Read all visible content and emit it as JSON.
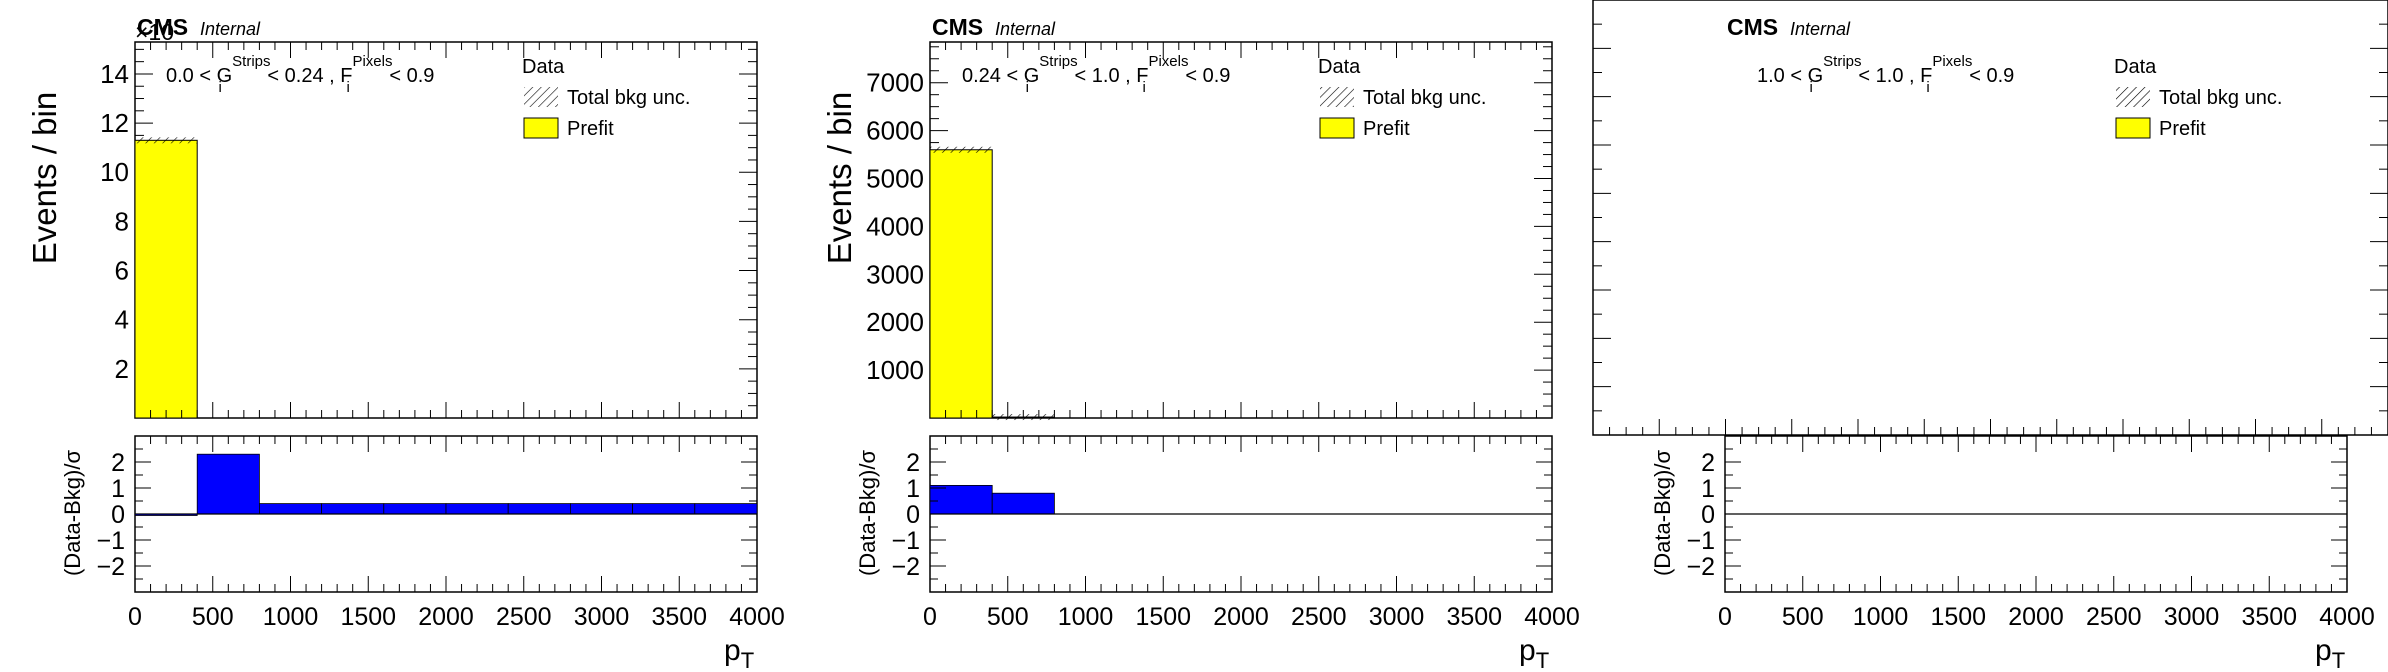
{
  "panels": [
    {
      "cms_label": "CMS",
      "internal_label": "Internal",
      "exponent_label": "×10",
      "selection_text": {
        "low": "0.0 < G",
        "g_sup": "Strips",
        "g_sub": "i",
        "high": " < 0.24 , F",
        "f_sup": "Pixels",
        "f_sub": "i",
        "end": " < 0.9"
      },
      "legend": [
        "Data",
        "Total bkg unc.",
        "Prefit"
      ],
      "ylabel": "Events / bin",
      "ratio_ylabel": "(Data-Bkg)/σ",
      "xlabel_main": "p",
      "xlabel_sub": "T"
    },
    {
      "cms_label": "CMS",
      "internal_label": "Internal",
      "selection_text": {
        "low": "0.24 < G",
        "g_sup": "Strips",
        "g_sub": "i",
        "high": " < 1.0 , F",
        "f_sup": "Pixels",
        "f_sub": "i",
        "end": " < 0.9"
      },
      "legend": [
        "Data",
        "Total bkg unc.",
        "Prefit"
      ],
      "ylabel": "Events / bin",
      "ratio_ylabel": "(Data-Bkg)/σ",
      "xlabel_main": "p",
      "xlabel_sub": "T"
    },
    {
      "cms_label": "CMS",
      "internal_label": "Internal",
      "selection_text": {
        "low": "1.0 < G",
        "g_sup": "Strips",
        "g_sub": "i",
        "high": " < 1.0 , F",
        "f_sup": "Pixels",
        "f_sub": "i",
        "end": " < 0.9"
      },
      "legend": [
        "Data",
        "Total bkg unc.",
        "Prefit"
      ],
      "ylabel": "",
      "ratio_ylabel": "(Data-Bkg)/σ",
      "xlabel_main": "p",
      "xlabel_sub": "T"
    }
  ],
  "colors": {
    "prefit_fill": "#ffff00",
    "pull_fill": "#0000ff",
    "frame": "#000000"
  },
  "chart_data": [
    {
      "type": "bar",
      "title": "",
      "xlabel": "p_T",
      "ylabel": "Events / bin",
      "xlim": [
        0,
        4000
      ],
      "ylim": [
        0,
        15.3
      ],
      "y_scale_note": "×10",
      "x_ticks": [
        "0",
        "500",
        "1000",
        "1500",
        "2000",
        "2500",
        "3000",
        "3500",
        "4000"
      ],
      "y_ticks": [
        2,
        4,
        6,
        8,
        10,
        12,
        14
      ],
      "bin_edges": [
        0,
        400,
        800,
        1200,
        1600,
        2000,
        2400,
        2800,
        3200,
        3600,
        4000
      ],
      "series": [
        {
          "name": "Prefit",
          "values": [
            11.3,
            0,
            0,
            0,
            0,
            0,
            0,
            0,
            0,
            0
          ]
        }
      ],
      "ratio": {
        "ylabel": "(Data-Bkg)/σ",
        "ylim": [
          -3,
          3
        ],
        "y_ticks": [
          -2,
          -1,
          0,
          1,
          2
        ],
        "values": [
          -0.05,
          2.3,
          0.4,
          0.4,
          0.4,
          0.4,
          0.4,
          0.4,
          0.4,
          0.4
        ]
      }
    },
    {
      "type": "bar",
      "title": "",
      "xlabel": "p_T",
      "ylabel": "Events / bin",
      "xlim": [
        0,
        4000
      ],
      "ylim": [
        0,
        7850
      ],
      "x_ticks": [
        "0",
        "500",
        "1000",
        "1500",
        "2000",
        "2500",
        "3000",
        "3500",
        "4000"
      ],
      "y_ticks": [
        1000,
        2000,
        3000,
        4000,
        5000,
        6000,
        7000
      ],
      "bin_edges": [
        0,
        400,
        800,
        1200,
        1600,
        2000,
        2400,
        2800,
        3200,
        3600,
        4000
      ],
      "series": [
        {
          "name": "Prefit",
          "values": [
            5600,
            20,
            0,
            0,
            0,
            0,
            0,
            0,
            0,
            0
          ]
        }
      ],
      "ratio": {
        "ylabel": "(Data-Bkg)/σ",
        "ylim": [
          -3,
          3
        ],
        "y_ticks": [
          -2,
          -1,
          0,
          1,
          2
        ],
        "values": [
          1.1,
          0.8,
          0,
          0,
          0,
          0,
          0,
          0,
          0,
          0
        ]
      }
    },
    {
      "type": "bar",
      "title": "",
      "xlabel": "p_T",
      "ylabel": "",
      "xlim": [
        0,
        4000
      ],
      "x_ticks": [
        "0",
        "500",
        "1000",
        "1500",
        "2000",
        "2500",
        "3000",
        "3500",
        "4000"
      ],
      "y_ticks": [],
      "bin_edges": [
        0,
        400,
        800,
        1200,
        1600,
        2000,
        2400,
        2800,
        3200,
        3600,
        4000
      ],
      "series": [
        {
          "name": "Prefit",
          "values": [
            0,
            0,
            0,
            0,
            0,
            0,
            0,
            0,
            0,
            0
          ]
        }
      ],
      "ratio": {
        "ylabel": "(Data-Bkg)/σ",
        "ylim": [
          -3,
          3
        ],
        "y_ticks": [
          -2,
          -1,
          0,
          1,
          2
        ],
        "values": [
          0,
          0,
          0,
          0,
          0,
          0,
          0,
          0,
          0,
          0
        ]
      }
    }
  ]
}
